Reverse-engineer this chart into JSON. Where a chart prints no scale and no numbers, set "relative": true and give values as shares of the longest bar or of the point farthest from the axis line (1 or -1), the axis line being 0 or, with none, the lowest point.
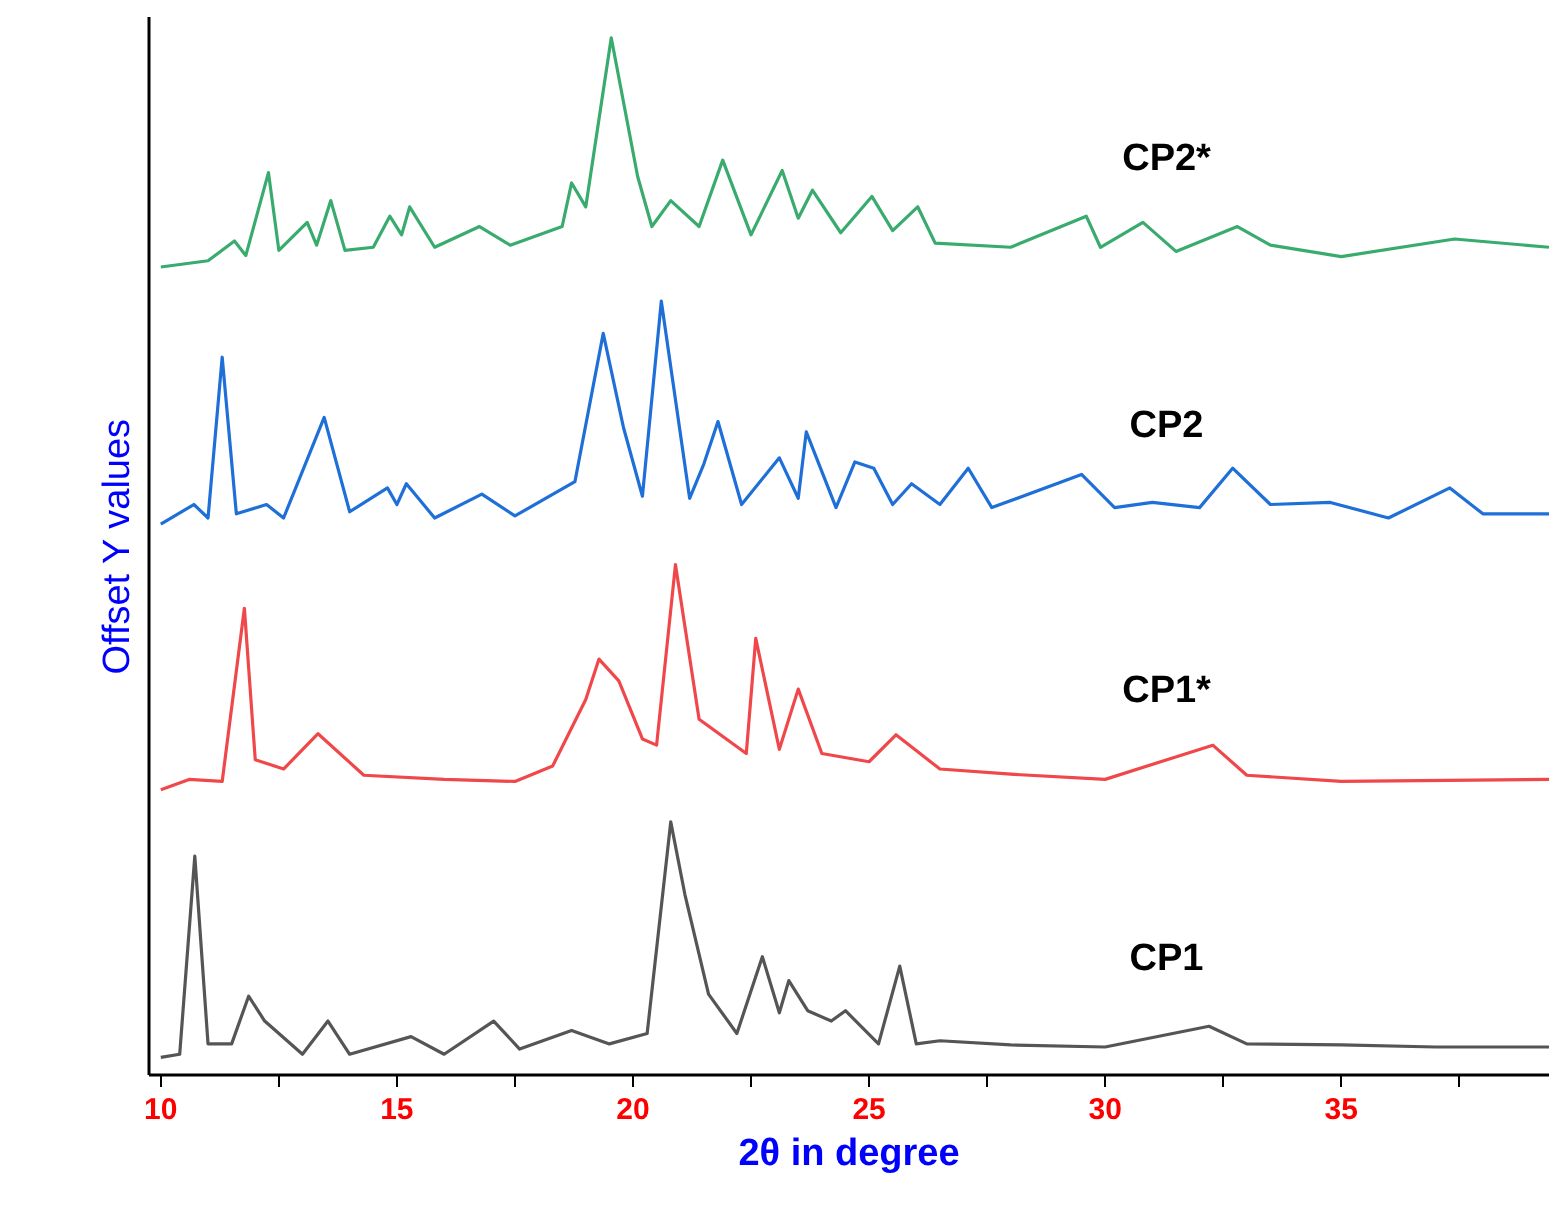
{
  "chart_data": {
    "type": "line",
    "relative": true,
    "xlabel": "2θ in degree",
    "ylabel": "Offset Y values",
    "xlim": [
      9.75,
      39.4
    ],
    "xticks": [
      10,
      {
        "value": 12.5,
        "label": null
      },
      15,
      {
        "value": 17.5,
        "label": null
      },
      20,
      {
        "value": 22.5,
        "label": null
      },
      25,
      {
        "value": 27.5,
        "label": null
      },
      30,
      {
        "value": 32.5,
        "label": null
      },
      35,
      {
        "value": 37.5,
        "label": null
      }
    ],
    "tick_labels": "x",
    "grid": false,
    "line_style": "solid",
    "marker": "none",
    "series": [
      {
        "name": "CP1",
        "color": "#555555",
        "x": [
          10.0,
          10.4,
          10.72,
          11.0,
          11.5,
          11.86,
          12.2,
          13.0,
          13.54,
          14.0,
          15.3,
          16.0,
          17.05,
          17.6,
          18.7,
          19.5,
          20.3,
          20.8,
          21.1,
          21.6,
          22.2,
          22.74,
          23.1,
          23.3,
          23.7,
          24.2,
          24.5,
          25.2,
          25.65,
          26.0,
          26.5,
          28.0,
          30.0,
          32.2,
          33.0,
          35.0,
          37.0,
          39.4
        ],
        "values": [
          0.017,
          0.02,
          0.211,
          0.03,
          0.03,
          0.076,
          0.052,
          0.02,
          0.052,
          0.02,
          0.037,
          0.02,
          0.052,
          0.025,
          0.043,
          0.03,
          0.04,
          0.244,
          0.174,
          0.078,
          0.04,
          0.114,
          0.06,
          0.091,
          0.062,
          0.052,
          0.062,
          0.03,
          0.105,
          0.03,
          0.033,
          0.029,
          0.027,
          0.047,
          0.03,
          0.029,
          0.027,
          0.027
        ]
      },
      {
        "name": "CP1*",
        "color": "#f0484a",
        "x": [
          10.0,
          10.6,
          11.3,
          11.77,
          12.0,
          12.6,
          13.33,
          14.3,
          16.0,
          17.5,
          18.3,
          19.0,
          19.28,
          19.7,
          20.2,
          20.5,
          20.9,
          21.4,
          22.4,
          22.6,
          23.1,
          23.5,
          24.0,
          25.0,
          25.57,
          26.5,
          28.0,
          30.0,
          32.28,
          33.0,
          35.0,
          39.4
        ],
        "values": [
          0.275,
          0.285,
          0.283,
          0.45,
          0.304,
          0.295,
          0.329,
          0.289,
          0.285,
          0.283,
          0.298,
          0.362,
          0.401,
          0.38,
          0.324,
          0.318,
          0.492,
          0.343,
          0.31,
          0.421,
          0.314,
          0.372,
          0.31,
          0.302,
          0.328,
          0.295,
          0.29,
          0.285,
          0.318,
          0.289,
          0.283,
          0.285
        ]
      },
      {
        "name": "CP2",
        "color": "#1f6fd8",
        "x": [
          10.0,
          10.7,
          11.0,
          11.3,
          11.6,
          12.24,
          12.6,
          13.46,
          14.0,
          14.8,
          15.0,
          15.2,
          15.8,
          16.8,
          17.5,
          18.77,
          19.37,
          19.8,
          20.2,
          20.6,
          21.2,
          21.5,
          21.8,
          22.3,
          23.1,
          23.5,
          23.67,
          24.3,
          24.7,
          25.1,
          25.5,
          25.9,
          26.5,
          27.1,
          27.6,
          29.5,
          30.2,
          31.0,
          32.0,
          32.7,
          33.5,
          34.77,
          36.0,
          37.3,
          38.0,
          39.4
        ],
        "values": [
          0.531,
          0.55,
          0.537,
          0.692,
          0.541,
          0.55,
          0.537,
          0.634,
          0.543,
          0.566,
          0.55,
          0.57,
          0.537,
          0.56,
          0.539,
          0.572,
          0.715,
          0.624,
          0.558,
          0.746,
          0.556,
          0.589,
          0.63,
          0.55,
          0.595,
          0.556,
          0.62,
          0.547,
          0.591,
          0.585,
          0.55,
          0.57,
          0.55,
          0.585,
          0.547,
          0.579,
          0.547,
          0.552,
          0.547,
          0.585,
          0.55,
          0.552,
          0.537,
          0.566,
          0.541,
          0.541
        ]
      },
      {
        "name": "CP2*",
        "color": "#3aab6e",
        "x": [
          10.0,
          11.0,
          11.56,
          11.8,
          12.28,
          12.5,
          13.1,
          13.3,
          13.6,
          13.9,
          14.5,
          14.85,
          15.1,
          15.27,
          15.8,
          16.75,
          17.4,
          18.5,
          18.7,
          19.0,
          19.54,
          20.1,
          20.4,
          20.8,
          21.4,
          21.9,
          22.5,
          23.16,
          23.5,
          23.8,
          24.4,
          25.06,
          25.5,
          26.03,
          26.4,
          28.0,
          29.6,
          29.9,
          30.8,
          31.5,
          32.8,
          33.5,
          35.0,
          37.4,
          39.4
        ],
        "values": [
          0.779,
          0.785,
          0.804,
          0.79,
          0.87,
          0.795,
          0.822,
          0.8,
          0.843,
          0.795,
          0.798,
          0.828,
          0.81,
          0.837,
          0.798,
          0.818,
          0.8,
          0.818,
          0.86,
          0.837,
          1.0,
          0.866,
          0.818,
          0.843,
          0.818,
          0.882,
          0.81,
          0.872,
          0.826,
          0.853,
          0.812,
          0.847,
          0.814,
          0.837,
          0.802,
          0.798,
          0.828,
          0.798,
          0.822,
          0.794,
          0.818,
          0.8,
          0.789,
          0.806,
          0.798
        ]
      }
    ]
  }
}
